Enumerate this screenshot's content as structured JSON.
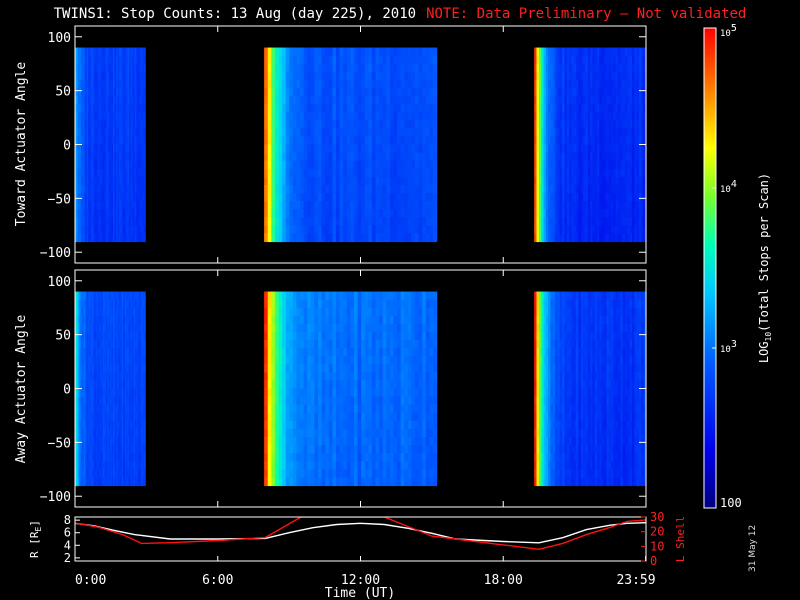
{
  "title": "TWINS1: Stop Counts: 13 Aug (day 225), 2010",
  "note": "NOTE: Data Preliminary – Not validated",
  "datestamp": "31 May 12",
  "colors": {
    "background": "#000000",
    "foreground": "#ffffff",
    "note": "#ff2020",
    "r_line": "#ffffff",
    "lshell_line": "#ff1010"
  },
  "chart_data": [
    {
      "type": "heatmap",
      "id": "toward",
      "ylabel": "Toward Actuator Angle",
      "xlim": [
        0,
        24
      ],
      "ylim": [
        -110,
        110
      ],
      "yticks": [
        "100",
        "50",
        "0",
        "−50",
        "−100"
      ],
      "ytick_values": [
        100,
        50,
        0,
        -50,
        -100
      ],
      "value_scale": "log",
      "value_range": [
        100,
        100000
      ],
      "angle_range": [
        -90,
        90
      ],
      "data_blocks": [
        {
          "start_hour": 0.0,
          "end_hour": 2.95,
          "peak_log10": 3.3,
          "floor_log10": 2.75
        },
        {
          "start_hour": 7.95,
          "end_hour": 15.2,
          "peak_log10": 4.75,
          "floor_log10": 2.85
        },
        {
          "start_hour": 19.3,
          "end_hour": 24.0,
          "peak_log10": 4.9,
          "floor_log10": 2.65
        }
      ]
    },
    {
      "type": "heatmap",
      "id": "away",
      "ylabel": "Away Actuator Angle",
      "xlim": [
        0,
        24
      ],
      "ylim": [
        -110,
        110
      ],
      "yticks": [
        "100",
        "50",
        "0",
        "−50",
        "−100"
      ],
      "ytick_values": [
        100,
        50,
        0,
        -50,
        -100
      ],
      "value_scale": "log",
      "value_range": [
        100,
        100000
      ],
      "angle_range": [
        -90,
        90
      ],
      "data_blocks": [
        {
          "start_hour": 0.0,
          "end_hour": 2.95,
          "peak_log10": 3.6,
          "floor_log10": 2.8
        },
        {
          "start_hour": 7.95,
          "end_hour": 15.2,
          "peak_log10": 4.9,
          "floor_log10": 3.0
        },
        {
          "start_hour": 19.3,
          "end_hour": 24.0,
          "peak_log10": 4.95,
          "floor_log10": 2.7
        }
      ]
    },
    {
      "type": "line",
      "id": "orbit",
      "xlabel": "Time (UT)",
      "xlim": [
        0,
        24
      ],
      "xticks": [
        "0:00",
        "6:00",
        "12:00",
        "18:00",
        "23:59"
      ],
      "xtick_values": [
        0,
        6,
        12,
        18,
        23.983
      ],
      "ylabel_left": "R [R",
      "ylabel_left_sub": "E",
      "ylabel_left_end": "]",
      "ylim_left": [
        1.5,
        8.5
      ],
      "yticks_left": [
        "8",
        "6",
        "4",
        "2"
      ],
      "ytick_values_left": [
        8,
        6,
        4,
        2
      ],
      "ylabel_right": "L Shell",
      "ylim_right": [
        0,
        30
      ],
      "yticks_right": [
        "30",
        "20",
        "10",
        "0"
      ],
      "ytick_values_right": [
        30,
        20,
        10,
        0
      ],
      "series": [
        {
          "axis": "left",
          "x": [
            0,
            0.8,
            1.6,
            2.5,
            4.0,
            6.0,
            8.0,
            9.0,
            10.0,
            11.0,
            12.0,
            13.0,
            14.0,
            15.0,
            16.0,
            18.0,
            19.5,
            20.5,
            21.5,
            22.5,
            23.2,
            24.0
          ],
          "y": [
            7.5,
            7.1,
            6.4,
            5.7,
            5.0,
            5.0,
            5.1,
            6.0,
            6.8,
            7.3,
            7.5,
            7.3,
            6.7,
            5.9,
            5.0,
            4.6,
            4.4,
            5.2,
            6.5,
            7.2,
            7.5,
            7.6
          ]
        },
        {
          "axis": "right",
          "x": [
            0,
            1.0,
            2.0,
            2.8,
            4.0,
            6.0,
            8.0,
            9.5,
            13.0,
            15.0,
            16.5,
            18.0,
            19.5,
            20.5,
            21.5,
            22.5,
            23.2,
            24.0
          ],
          "y": [
            26,
            23,
            18,
            12,
            12.5,
            14,
            16,
            30,
            30,
            17,
            14,
            11,
            8,
            12,
            18,
            23,
            27,
            28
          ]
        }
      ]
    },
    {
      "type": "colorbar",
      "id": "colorbar",
      "label_main": "LOG",
      "label_sub": "10",
      "label_rest": "(Total Stops per Scan)",
      "scale": "log",
      "range": [
        100,
        100000
      ],
      "tick_labels": [
        "10",
        "10",
        "10",
        "100"
      ],
      "tick_exponents": [
        "5",
        "4",
        "3",
        ""
      ],
      "tick_values": [
        100000,
        10000,
        1000,
        100
      ]
    }
  ]
}
